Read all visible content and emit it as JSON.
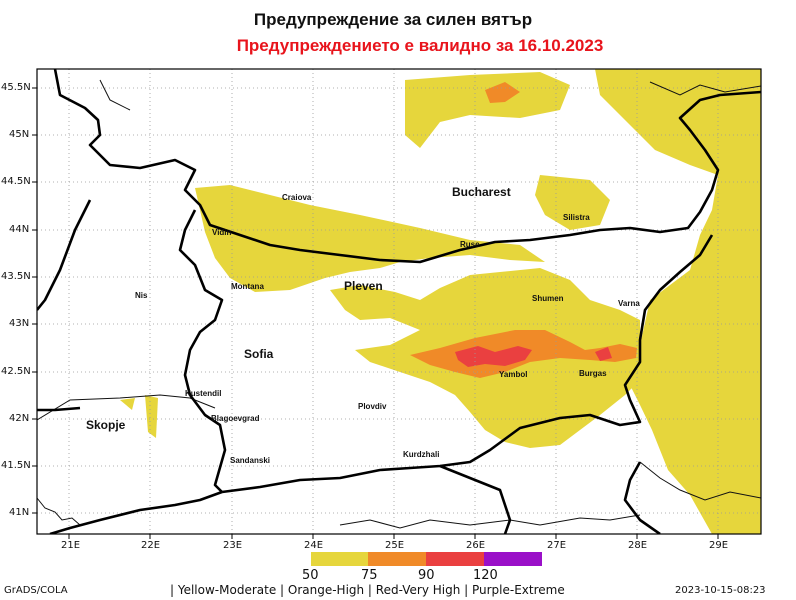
{
  "title": "Предупреждение за силен вятър",
  "subtitle": "Предупреждението е валидно за 16.10.2023",
  "lat_ticks": [
    "45.5N",
    "45N",
    "44.5N",
    "44N",
    "43.5N",
    "43N",
    "42.5N",
    "42N",
    "41.5N",
    "41N"
  ],
  "lon_ticks": [
    "21E",
    "22E",
    "23E",
    "24E",
    "25E",
    "26E",
    "27E",
    "28E",
    "29E"
  ],
  "cities": [
    "Bucharest",
    "Craiova",
    "Vidin",
    "Silistra",
    "Ruse",
    "Montana",
    "Pleven",
    "Nis",
    "Shumen",
    "Varna",
    "Sofia",
    "Yambol",
    "Burgas",
    "Kustendil",
    "Skopje",
    "Blagoevgrad",
    "Plovdiv",
    "Kurdzhali",
    "Sandanski"
  ],
  "legend": {
    "values": [
      "50",
      "75",
      "90",
      "120"
    ],
    "colors": [
      "#e6d63c",
      "#f08a28",
      "#ea4040",
      "#9a10c8"
    ],
    "text": "| Yellow-Moderate | Orange-High | Red-Very High | Purple-Extreme"
  },
  "credit": "GrADS/COLA",
  "timestamp": "2023-10-15-08:23"
}
